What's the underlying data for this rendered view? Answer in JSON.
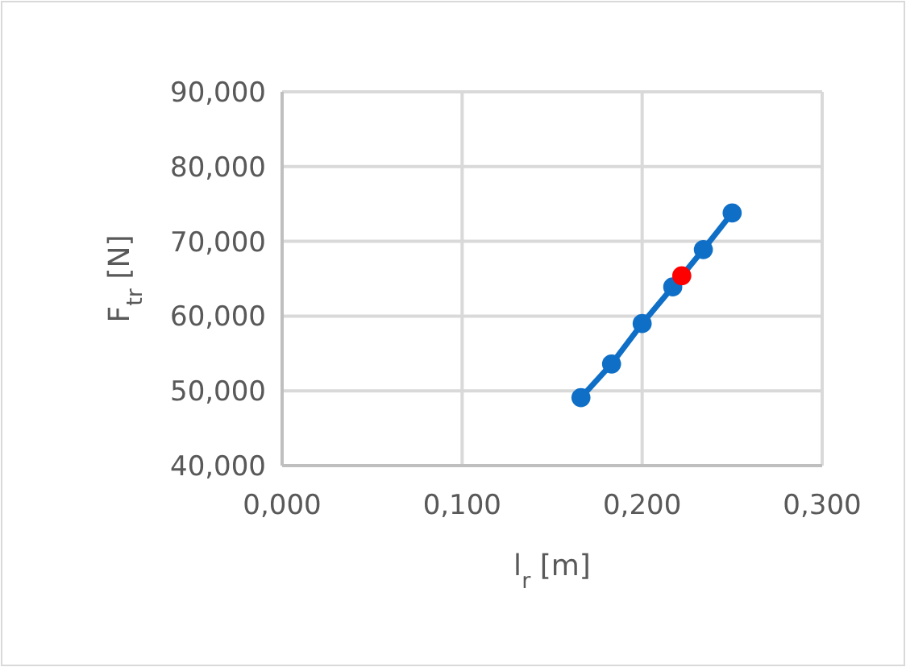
{
  "chart_data": {
    "type": "line",
    "xlabel": "l$_{r}$ [m]",
    "ylabel": "F$_{tr}$ [N]",
    "x": [
      0.166,
      0.183,
      0.2,
      0.217,
      0.234,
      0.25
    ],
    "series": [
      {
        "color": "#0f6fc6",
        "values": [
          49.1,
          53.6,
          59.0,
          63.9,
          68.9,
          73.8
        ]
      },
      {
        "type": "scatter",
        "color": "#ff0000",
        "x": [
          0.222
        ],
        "values": [
          65.4
        ]
      }
    ],
    "xlim": [
      0,
      0.3
    ],
    "xticks": [
      {
        "value": 0,
        "label": "0,000"
      },
      {
        "value": 0.1,
        "label": "0,100"
      },
      {
        "value": 0.2,
        "label": "0,200"
      },
      {
        "value": 0.3,
        "label": "0,300"
      }
    ],
    "ylim": [
      40,
      90
    ],
    "yticks": [
      {
        "value": 40,
        "label": "40,000"
      },
      {
        "value": 50,
        "label": "50,000"
      },
      {
        "value": 60,
        "label": "60,000"
      },
      {
        "value": 70,
        "label": "70,000"
      },
      {
        "value": 80,
        "label": "80,000"
      },
      {
        "value": 90,
        "label": "90,000"
      }
    ],
    "grid": true,
    "marker": "circle"
  }
}
